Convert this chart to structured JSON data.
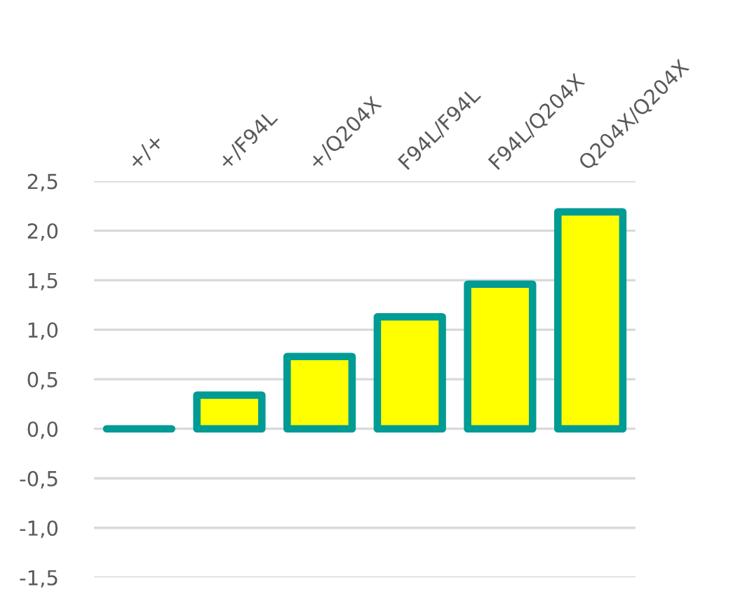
{
  "chart_data": {
    "type": "bar",
    "categories": [
      "+/+",
      "+/F94L",
      "+/Q204X",
      "F94L/F94L",
      "F94L/Q204X",
      "Q204X/Q204X"
    ],
    "values": [
      0.0,
      0.34,
      0.73,
      1.13,
      1.46,
      2.19
    ],
    "colors": [
      "#009b95",
      "#ffff00",
      "#ffff00",
      "#ffff00",
      "#ffff00",
      "#ffff00"
    ],
    "ylim": [
      -1.5,
      2.5
    ],
    "yticks": [
      {
        "value": -1.5,
        "label": "-1,5"
      },
      {
        "value": -1.0,
        "label": "-1,0"
      },
      {
        "value": -0.5,
        "label": "-0,5"
      },
      {
        "value": 0.0,
        "label": "0,0"
      },
      {
        "value": 0.5,
        "label": "0,5"
      },
      {
        "value": 1.0,
        "label": "1,0"
      },
      {
        "value": 1.5,
        "label": "1,5"
      },
      {
        "value": 2.0,
        "label": "2,0"
      },
      {
        "value": 2.5,
        "label": "2,5"
      }
    ],
    "grid": "y",
    "legend": false
  }
}
